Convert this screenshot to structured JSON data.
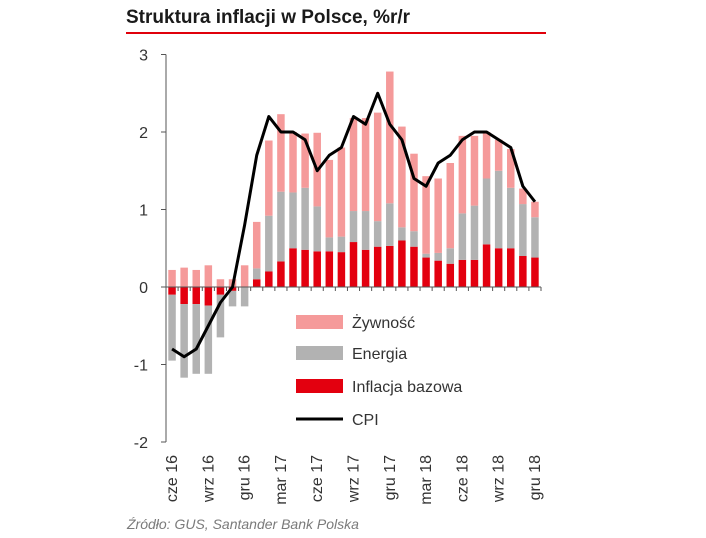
{
  "chart_data": {
    "type": "bar",
    "title": "Struktura inflacji w Polsce, %r/r",
    "source": "Źródło: GUS, Santander Bank Polska",
    "ylim": [
      -2,
      3
    ],
    "yticks": [
      "3",
      "2",
      "1",
      "0",
      "-1",
      "-2"
    ],
    "x_tick_labels": [
      "cze 16",
      "wrz 16",
      "gru 16",
      "mar 17",
      "cze 17",
      "wrz 17",
      "gru 17",
      "mar 18",
      "cze 18",
      "wrz 18",
      "gru 18"
    ],
    "categories": [
      "06.2016",
      "07.2016",
      "08.2016",
      "09.2016",
      "10.2016",
      "11.2016",
      "12.2016",
      "01.2017",
      "02.2017",
      "03.2017",
      "04.2017",
      "05.2017",
      "06.2017",
      "07.2017",
      "08.2017",
      "09.2017",
      "10.2017",
      "11.2017",
      "12.2017",
      "01.2018",
      "02.2018",
      "03.2018",
      "04.2018",
      "05.2018",
      "06.2018",
      "07.2018",
      "08.2018",
      "09.2018",
      "10.2018",
      "11.2018",
      "12.2018"
    ],
    "series": [
      {
        "name": "Inflacja bazowa",
        "color": "#e3000f",
        "values": [
          -0.1,
          -0.22,
          -0.22,
          -0.24,
          -0.1,
          -0.05,
          0.0,
          0.1,
          0.2,
          0.33,
          0.5,
          0.48,
          0.46,
          0.46,
          0.45,
          0.58,
          0.48,
          0.52,
          0.53,
          0.6,
          0.52,
          0.38,
          0.34,
          0.3,
          0.35,
          0.35,
          0.55,
          0.5,
          0.5,
          0.4,
          0.38
        ]
      },
      {
        "name": "Energia",
        "color": "#b2b2b2",
        "values": [
          -0.85,
          -0.95,
          -0.9,
          -0.88,
          -0.55,
          -0.2,
          -0.25,
          0.14,
          0.72,
          0.9,
          0.72,
          0.8,
          0.58,
          0.18,
          0.2,
          0.4,
          0.5,
          0.33,
          0.55,
          0.17,
          0.2,
          0.05,
          0.1,
          0.2,
          0.6,
          0.7,
          0.85,
          1.0,
          0.78,
          0.67,
          0.52
        ]
      },
      {
        "name": "Żywność",
        "color": "#f59a9a",
        "values": [
          0.22,
          0.25,
          0.22,
          0.28,
          0.1,
          0.1,
          0.28,
          0.6,
          0.97,
          1.0,
          0.78,
          0.7,
          0.95,
          1.0,
          1.15,
          1.2,
          1.2,
          1.4,
          1.7,
          1.3,
          1.0,
          1.0,
          0.96,
          1.1,
          1.0,
          0.9,
          0.6,
          0.4,
          0.5,
          0.2,
          0.2
        ]
      },
      {
        "name": "CPI",
        "color": "#000000",
        "values": [
          -0.8,
          -0.9,
          -0.8,
          -0.5,
          -0.2,
          0.0,
          0.8,
          1.7,
          2.2,
          2.0,
          2.0,
          1.9,
          1.5,
          1.7,
          1.8,
          2.2,
          2.1,
          2.5,
          2.1,
          1.9,
          1.4,
          1.3,
          1.6,
          1.7,
          1.9,
          2.0,
          2.0,
          1.9,
          1.8,
          1.3,
          1.1
        ]
      }
    ],
    "legend": [
      {
        "label": "Żywność",
        "color": "#f59a9a",
        "kind": "bar"
      },
      {
        "label": "Energia",
        "color": "#b2b2b2",
        "kind": "bar"
      },
      {
        "label": "Inflacja bazowa",
        "color": "#e3000f",
        "kind": "bar"
      },
      {
        "label": "CPI",
        "color": "#000000",
        "kind": "line"
      }
    ]
  }
}
